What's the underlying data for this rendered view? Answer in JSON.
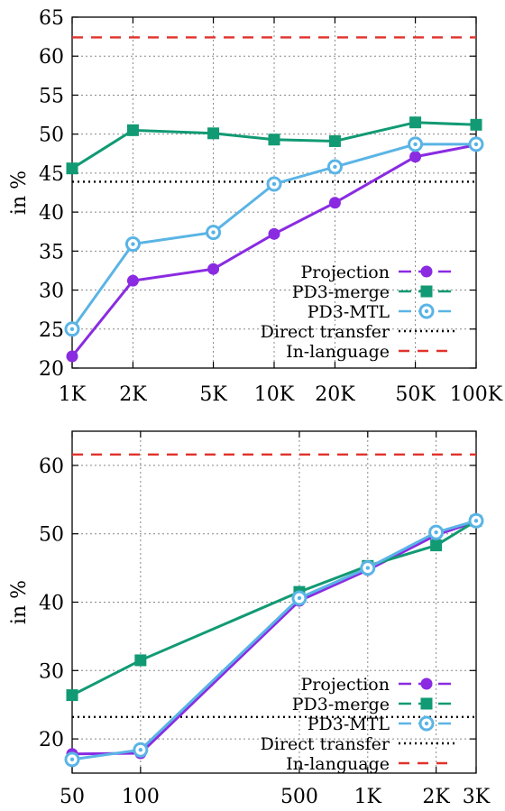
{
  "chart_data": [
    {
      "type": "line",
      "title": "",
      "xlabel": "",
      "ylabel": "in %",
      "xscale": "log",
      "xlim": [
        1000,
        100000
      ],
      "ylim": [
        20,
        65
      ],
      "xticks": [
        1000,
        2000,
        5000,
        10000,
        20000,
        50000,
        100000
      ],
      "xtick_labels": [
        "1K",
        "2K",
        "5K",
        "10K",
        "20K",
        "50K",
        "100K"
      ],
      "yticks": [
        20,
        25,
        30,
        35,
        40,
        45,
        50,
        55,
        60,
        65
      ],
      "ytick_labels": [
        "20",
        "25",
        "30",
        "35",
        "40",
        "45",
        "50",
        "55",
        "60",
        "65"
      ],
      "grid": true,
      "legend_position": "bottom-right",
      "series": [
        {
          "name": "Projection",
          "style": "line-marker",
          "marker": "circle",
          "color": "#8a2be2",
          "x": [
            1000,
            2000,
            5000,
            10000,
            20000,
            50000,
            100000
          ],
          "y": [
            21.5,
            31.2,
            32.7,
            37.2,
            41.2,
            47.1,
            48.6
          ]
        },
        {
          "name": "PD3-merge",
          "style": "line-marker",
          "marker": "square",
          "color": "#119a73",
          "x": [
            1000,
            2000,
            5000,
            10000,
            20000,
            50000,
            100000
          ],
          "y": [
            45.6,
            50.5,
            50.1,
            49.3,
            49.1,
            51.5,
            51.2
          ]
        },
        {
          "name": "PD3-MTL",
          "style": "line-marker",
          "marker": "ring",
          "color": "#5ab4e5",
          "x": [
            1000,
            2000,
            5000,
            10000,
            20000,
            50000,
            100000
          ],
          "y": [
            25.0,
            35.9,
            37.4,
            43.6,
            45.8,
            48.7,
            48.7
          ]
        },
        {
          "name": "Direct transfer",
          "style": "dotted",
          "color": "#000000",
          "y_const": 43.9
        },
        {
          "name": "In-language",
          "style": "dashed",
          "color": "#e0322a",
          "y_const": 62.4
        }
      ]
    },
    {
      "type": "line",
      "title": "",
      "xlabel": "",
      "ylabel": "in %",
      "xscale": "log",
      "xlim": [
        50,
        3000
      ],
      "ylim": [
        15,
        65
      ],
      "xticks": [
        50,
        100,
        500,
        1000,
        2000,
        3000
      ],
      "xtick_labels": [
        "50",
        "100",
        "500",
        "1K",
        "2K",
        "3K"
      ],
      "yticks": [
        20,
        30,
        40,
        50,
        60
      ],
      "ytick_labels": [
        "20",
        "30",
        "40",
        "50",
        "60"
      ],
      "grid": true,
      "legend_position": "bottom-right",
      "series": [
        {
          "name": "Projection",
          "style": "line-marker",
          "marker": "circle",
          "color": "#8a2be2",
          "x": [
            50,
            100,
            500,
            1000,
            2000,
            3000
          ],
          "y": [
            17.8,
            17.9,
            40.2,
            44.7,
            49.8,
            51.8
          ]
        },
        {
          "name": "PD3-merge",
          "style": "line-marker",
          "marker": "square",
          "color": "#119a73",
          "x": [
            50,
            100,
            500,
            1000,
            2000,
            3000
          ],
          "y": [
            26.4,
            31.5,
            41.5,
            45.3,
            48.3,
            51.9
          ]
        },
        {
          "name": "PD3-MTL",
          "style": "line-marker",
          "marker": "ring",
          "color": "#5ab4e5",
          "x": [
            50,
            100,
            500,
            1000,
            2000,
            3000
          ],
          "y": [
            17.0,
            18.4,
            40.6,
            45.0,
            50.2,
            51.9
          ]
        },
        {
          "name": "Direct transfer",
          "style": "dotted",
          "color": "#000000",
          "y_const": 23.2
        },
        {
          "name": "In-language",
          "style": "dashed",
          "color": "#e0322a",
          "y_const": 61.6
        }
      ]
    }
  ]
}
